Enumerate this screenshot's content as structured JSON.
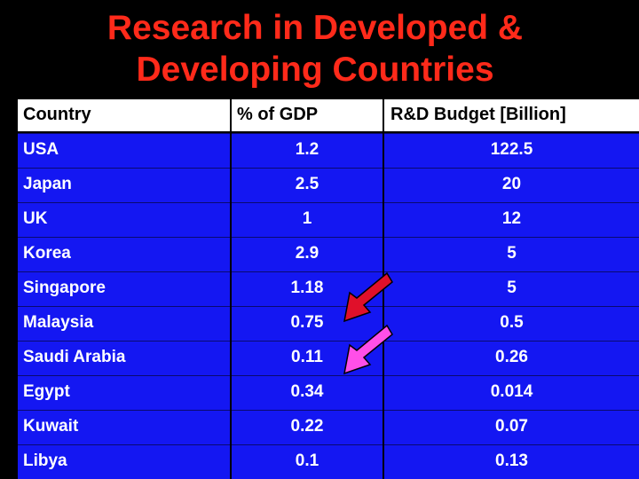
{
  "title": {
    "line1": "Research in Developed &",
    "line2": "Developing Countries"
  },
  "table": {
    "headers": [
      "Country",
      "% of GDP",
      "R&D Budget [Billion]"
    ],
    "rows": [
      {
        "country": "USA",
        "gdp": "1.2",
        "budget": "122.5"
      },
      {
        "country": "Japan",
        "gdp": "2.5",
        "budget": "20"
      },
      {
        "country": "UK",
        "gdp": "1",
        "budget": "12"
      },
      {
        "country": "Korea",
        "gdp": "2.9",
        "budget": "5"
      },
      {
        "country": "Singapore",
        "gdp": "1.18",
        "budget": "5"
      },
      {
        "country": "Malaysia",
        "gdp": "0.75",
        "budget": "0.5"
      },
      {
        "country": "Saudi Arabia",
        "gdp": "0.11",
        "budget": "0.26"
      },
      {
        "country": "Egypt",
        "gdp": "0.34",
        "budget": "0.014"
      },
      {
        "country": "Kuwait",
        "gdp": "0.22",
        "budget": "0.07"
      },
      {
        "country": "Libya",
        "gdp": "0.1",
        "budget": "0.13"
      }
    ]
  },
  "colors": {
    "title": "#ff2a1a",
    "table_background": "#1417f2",
    "arrow_red": "#e0102a",
    "arrow_magenta": "#ff4fe8"
  },
  "icons": [
    "red-arrow-icon",
    "magenta-arrow-icon"
  ]
}
